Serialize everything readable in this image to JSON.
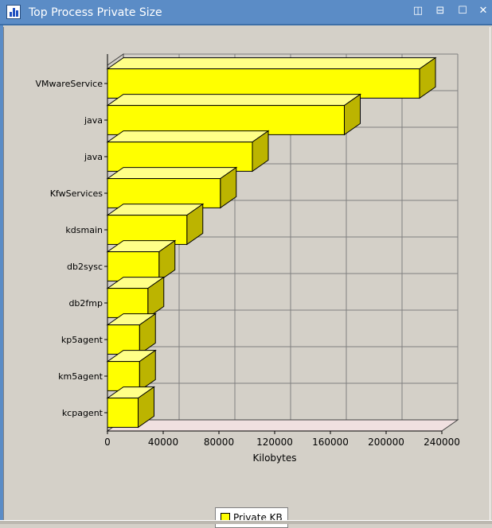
{
  "window": {
    "title": "Top Process Private Size",
    "icon": "bar-chart-icon",
    "buttons": [
      {
        "name": "tile-vertical-button",
        "glyph": "◫"
      },
      {
        "name": "tile-horizontal-button",
        "glyph": "⊟"
      },
      {
        "name": "maximize-button",
        "glyph": "☐"
      },
      {
        "name": "close-button",
        "glyph": "✕"
      }
    ]
  },
  "legend": {
    "label": "Private KB"
  },
  "colors": {
    "bar_front": "#ffff00",
    "bar_side": "#bcb400",
    "bar_top": "#ffff88",
    "grid": "#808080",
    "floor": "#f0e0e0"
  },
  "chart_data": {
    "type": "bar",
    "orientation": "horizontal",
    "style": "3d",
    "categories": [
      "VMwareService",
      "java",
      "java",
      "KfwServices",
      "kdsmain",
      "db2sysc",
      "db2fmp",
      "kp5agent",
      "km5agent",
      "kcpagent"
    ],
    "series": [
      {
        "name": "Private KB",
        "values": [
          224000,
          170000,
          104000,
          81000,
          57000,
          37000,
          29000,
          23000,
          23000,
          22000
        ]
      }
    ],
    "xlabel": "Kilobytes",
    "ylabel": "",
    "xlim": [
      0,
      240000
    ],
    "xticks": [
      0,
      40000,
      80000,
      120000,
      160000,
      200000,
      240000
    ],
    "grid": true,
    "legend_position": "bottom-center"
  }
}
